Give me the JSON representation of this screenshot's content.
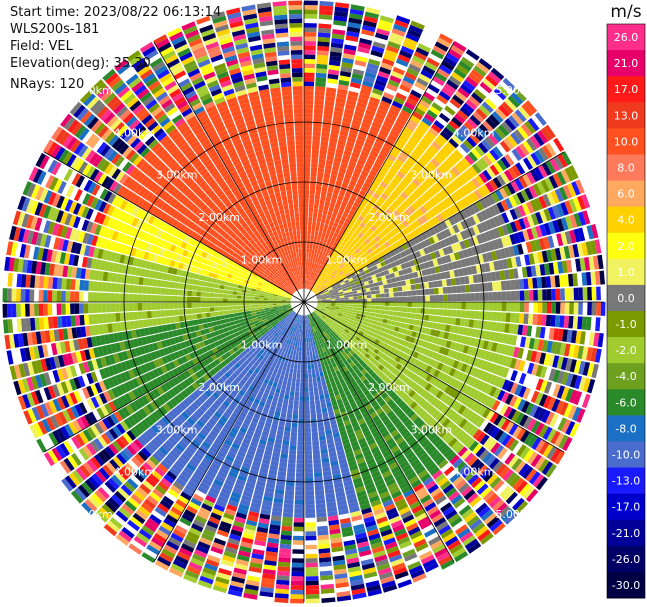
{
  "info": {
    "start_time": "Start time: 2023/08/22 06:13:14",
    "instrument": "WLS200s-181",
    "field": "Field: VEL",
    "elevation": "Elevation(deg): 35.30",
    "nrays": "NRays: 120"
  },
  "colorbar": {
    "unit": "m/s",
    "ticks": [
      "26.0",
      "21.0",
      "17.0",
      "13.0",
      "10.0",
      "8.0",
      "6.0",
      "4.0",
      "2.0",
      "1.0",
      "0.0",
      "-1.0",
      "-2.0",
      "-4.0",
      "-6.0",
      "-8.0",
      "-10.0",
      "-13.0",
      "-17.0",
      "-21.0",
      "-26.0",
      "-30.0"
    ],
    "colors": [
      "#ff2d8c",
      "#e8006a",
      "#ff1a1a",
      "#f03a1e",
      "#ff5020",
      "#ff7a5a",
      "#ffa860",
      "#ffd000",
      "#ffff10",
      "#f2f260",
      "#787878",
      "#7a9a00",
      "#a0cc30",
      "#6ea020",
      "#2a8a2a",
      "#1b6fc4",
      "#4a6ccc",
      "#1a1aff",
      "#0000cc",
      "#000099",
      "#000066",
      "#000044"
    ]
  },
  "chart_data": {
    "type": "ppi",
    "field": "VEL",
    "units": "m/s",
    "nrays": 120,
    "elevation_deg": 35.3,
    "range_ring_labels": [
      "1.00km",
      "2.00km",
      "3.00km",
      "4.00km",
      "5.00km"
    ],
    "range_rings_km": [
      1,
      2,
      3
    ],
    "max_range_km": 5,
    "valid_range_km": 3.6,
    "sectors": [
      {
        "azimuth_deg": [
          300,
          360
        ],
        "velocity": 10.0
      },
      {
        "azimuth_deg": [
          0,
          30
        ],
        "velocity": 10.0
      },
      {
        "azimuth_deg": [
          30,
          60
        ],
        "velocity": 4.0
      },
      {
        "azimuth_deg": [
          60,
          90
        ],
        "velocity": 0.0
      },
      {
        "azimuth_deg": [
          90,
          135
        ],
        "velocity": -2.0
      },
      {
        "azimuth_deg": [
          135,
          165
        ],
        "velocity": -6.0
      },
      {
        "azimuth_deg": [
          165,
          230
        ],
        "velocity": -10.0
      },
      {
        "azimuth_deg": [
          230,
          260
        ],
        "velocity": -6.0
      },
      {
        "azimuth_deg": [
          260,
          285
        ],
        "velocity": -2.0
      },
      {
        "azimuth_deg": [
          285,
          300
        ],
        "velocity": 2.0
      }
    ]
  }
}
